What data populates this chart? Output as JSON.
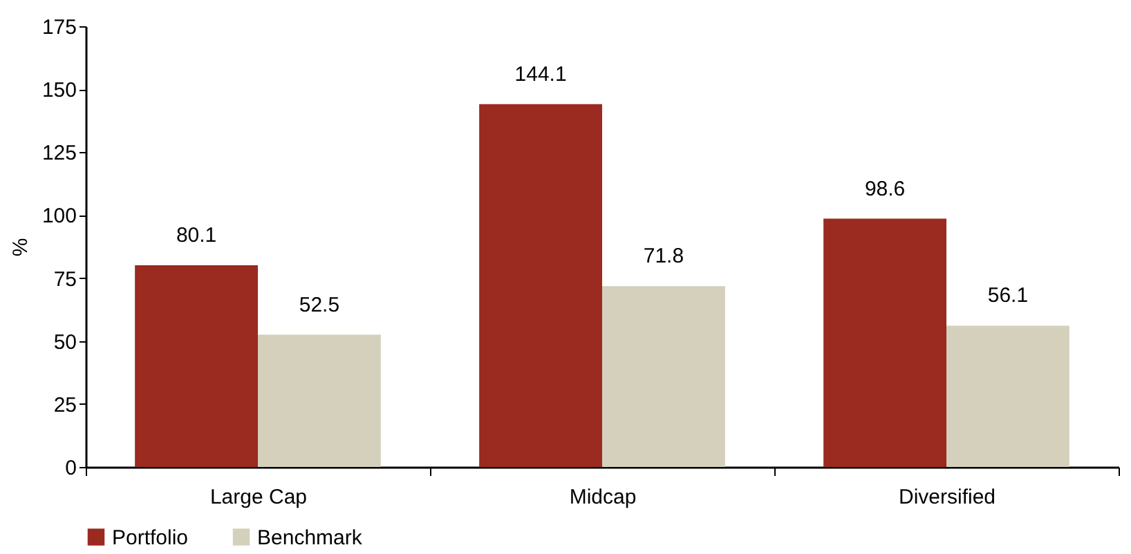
{
  "chart_data": {
    "type": "bar",
    "ylabel": "%",
    "categories": [
      "Large Cap",
      "Midcap",
      "Diversified"
    ],
    "series": [
      {
        "name": "Portfolio",
        "color": "#9b2a20",
        "values": [
          80.1,
          144.1,
          98.6
        ]
      },
      {
        "name": "Benchmark",
        "color": "#d4d0bc",
        "values": [
          52.5,
          71.8,
          56.1
        ]
      }
    ],
    "ylim": [
      0,
      175
    ],
    "yticks": [
      0,
      25,
      50,
      75,
      100,
      125,
      150,
      175
    ],
    "data_labels": true,
    "grid": false,
    "legend": "bottom"
  }
}
